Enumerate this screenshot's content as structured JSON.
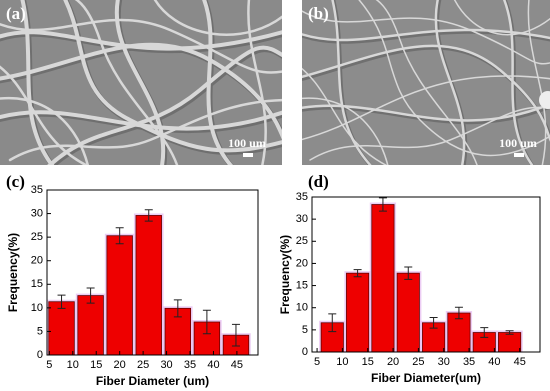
{
  "images": [
    {
      "label": "(a)",
      "scale_bar": "100 um"
    },
    {
      "label": "(b)",
      "scale_bar": "100 um"
    }
  ],
  "chart_data": [
    {
      "type": "histogram",
      "title": "(c)",
      "xlabel": "Fiber Diameter (um)",
      "ylabel": "Frequency(%)",
      "bins": [
        4.5,
        10.7,
        16.9,
        23.1,
        29.3,
        35.5,
        41.7,
        47.9
      ],
      "values": [
        11.3,
        12.6,
        25.3,
        29.6,
        9.9,
        7.0,
        4.2
      ],
      "errors": [
        1.4,
        1.6,
        1.7,
        1.2,
        1.8,
        2.5,
        2.3
      ],
      "color": "#ee0000",
      "xlim": [
        4.5,
        49.5
      ],
      "xticks": [
        5,
        10,
        15,
        20,
        25,
        30,
        35,
        40,
        45
      ],
      "ylim": [
        0,
        35
      ],
      "yticks": [
        0,
        5,
        10,
        15,
        20,
        25,
        30,
        35
      ]
    },
    {
      "type": "histogram",
      "title": "(d)",
      "xlabel": "Fiber Diameter(um)",
      "ylabel": "Frequency(%)",
      "bins": [
        5.5,
        10.5,
        15.5,
        20.5,
        25.5,
        30.5,
        35.5,
        40.5,
        45.5
      ],
      "values": [
        6.6,
        17.8,
        33.3,
        17.8,
        6.6,
        8.8,
        4.4,
        4.4
      ],
      "errors": [
        2.0,
        0.8,
        1.5,
        1.4,
        1.2,
        1.3,
        1.1,
        0.4
      ],
      "color": "#ee0000",
      "xlim": [
        4,
        49
      ],
      "xticks": [
        5,
        10,
        15,
        20,
        25,
        30,
        35,
        40,
        45
      ],
      "ylim": [
        0,
        35
      ],
      "yticks": [
        0,
        5,
        10,
        15,
        20,
        25,
        30,
        35
      ]
    }
  ]
}
